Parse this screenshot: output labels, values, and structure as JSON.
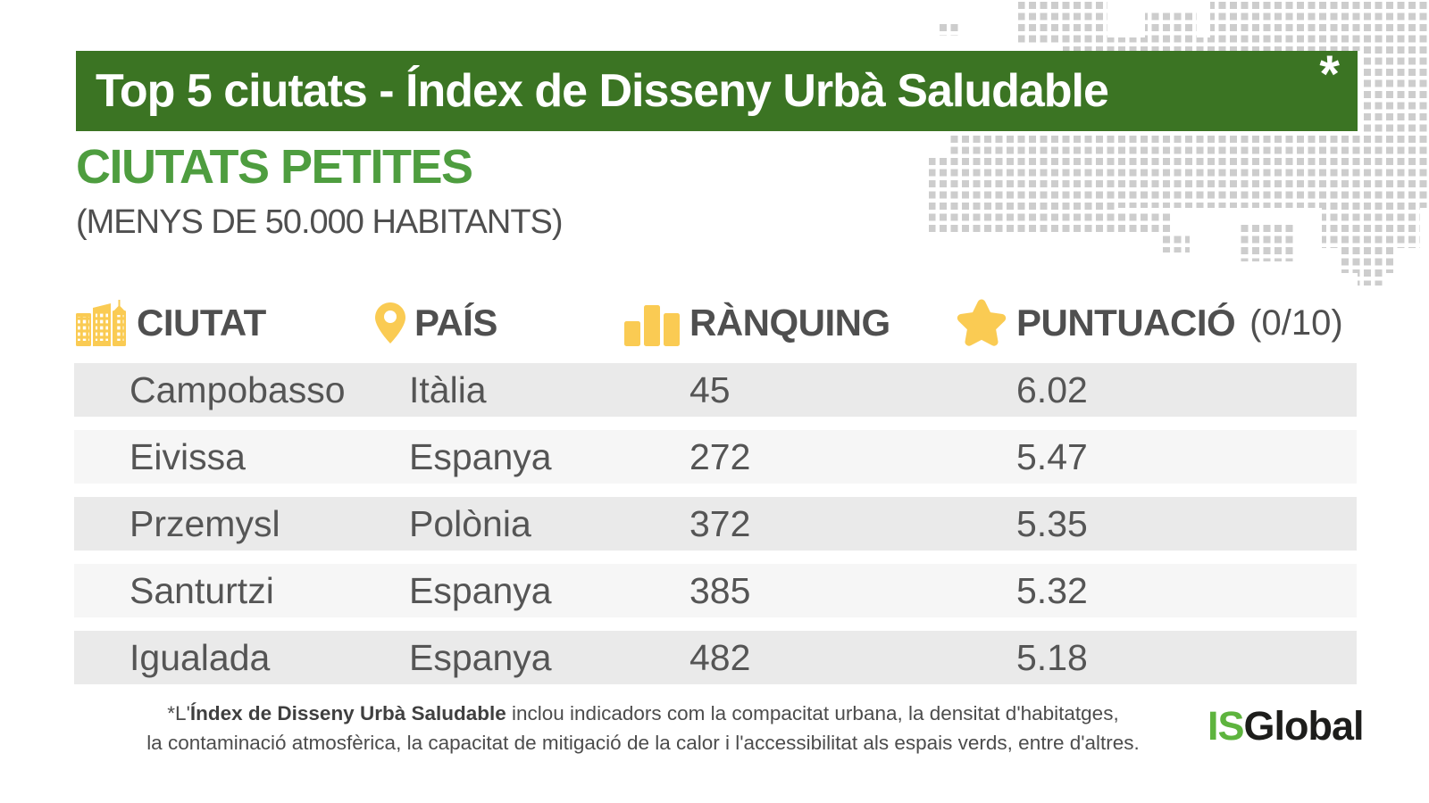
{
  "banner": {
    "title": "Top 5 ciutats - Índex de Disseny Urbà Saludable",
    "asterisk_marker": "*"
  },
  "section": {
    "heading": "CIUTATS PETITES",
    "subheading": "(MENYS DE 50.000 HABITANTS)"
  },
  "table": {
    "columns": [
      {
        "label": "CIUTAT",
        "icon": "city-buildings-icon"
      },
      {
        "label": "PAÍS",
        "icon": "map-pin-icon"
      },
      {
        "label": "RÀNQUING",
        "icon": "bar-chart-icon"
      },
      {
        "label": "PUNTUACIÓ",
        "suffix": "(0/10)",
        "icon": "star-icon"
      }
    ],
    "rows": [
      {
        "city": "Campobasso",
        "country": "Itàlia",
        "ranking": "45",
        "score": "6.02"
      },
      {
        "city": "Eivissa",
        "country": "Espanya",
        "ranking": "272",
        "score": "5.47"
      },
      {
        "city": "Przemysl",
        "country": "Polònia",
        "ranking": "372",
        "score": "5.35"
      },
      {
        "city": "Santurtzi",
        "country": "Espanya",
        "ranking": "385",
        "score": "5.32"
      },
      {
        "city": "Igualada",
        "country": "Espanya",
        "ranking": "482",
        "score": "5.18"
      }
    ]
  },
  "footnote": {
    "line1_prefix": "*L'",
    "line1_bold": "Índex de Disseny Urbà Saludable",
    "line1_rest": " inclou indicadors com la compacitat urbana, la densitat d'habitatges,",
    "line2": "la contaminació atmosfèrica, la capacitat de mitigació de la calor i l'accessibilitat als espais verds, entre d'altres."
  },
  "logo": {
    "is": "IS",
    "global": "Global"
  },
  "colors": {
    "banner_green": "#3B7423",
    "heading_green": "#4E9D3F",
    "accent_yellow": "#FACB53",
    "row_dark": "#EAEAEA",
    "row_light": "#F6F6F6",
    "text_gray": "#555555",
    "logo_green": "#5EB43E",
    "logo_black": "#1D1D1B",
    "dot_gray": "#CDCDCD"
  },
  "chart_data": {
    "type": "table",
    "title": "Top 5 ciutats - Índex de Disseny Urbà Saludable",
    "subtitle": "CIUTATS PETITES (MENYS DE 50.000 HABITANTS)",
    "columns": [
      "CIUTAT",
      "PAÍS",
      "RÀNQUING",
      "PUNTUACIÓ (0/10)"
    ],
    "rows": [
      [
        "Campobasso",
        "Itàlia",
        45,
        6.02
      ],
      [
        "Eivissa",
        "Espanya",
        272,
        5.47
      ],
      [
        "Przemysl",
        "Polònia",
        372,
        5.35
      ],
      [
        "Santurtzi",
        "Espanya",
        385,
        5.32
      ],
      [
        "Igualada",
        "Espanya",
        482,
        5.18
      ]
    ],
    "legend_position": "none",
    "source_note": "*L'Índex de Disseny Urbà Saludable inclou indicadors com la compacitat urbana, la densitat d'habitatges, la contaminació atmosfèrica, la capacitat de mitigació de la calor i l'accessibilitat als espais verds, entre d'altres."
  }
}
